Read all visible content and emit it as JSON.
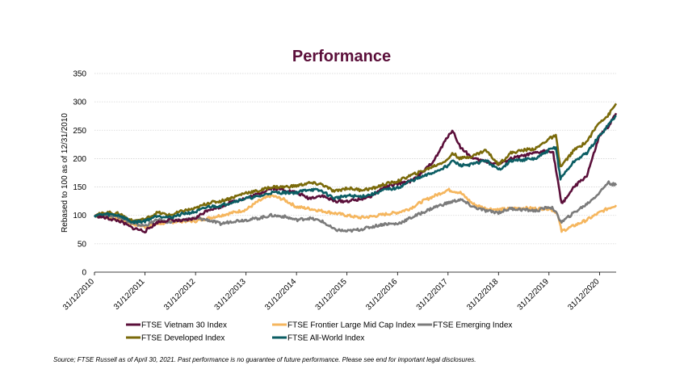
{
  "chart_data": {
    "type": "line",
    "title": "Performance",
    "ylabel": "Rebased to 100 as of 12/31/2010",
    "xlabel": "",
    "ylim": [
      0,
      350
    ],
    "yticks": [
      "0",
      "50",
      "100",
      "150",
      "200",
      "250",
      "300",
      "350"
    ],
    "xlim": [
      "2010-12-31",
      "2021-04-30"
    ],
    "xticks": [
      "31/12/2010",
      "31/12/2011",
      "31/12/2012",
      "31/12/2013",
      "31/12/2014",
      "31/12/2015",
      "31/12/2016",
      "31/12/2017",
      "31/12/2018",
      "31/12/2019",
      "31/12/2020"
    ],
    "grid": "horizontal",
    "legend_position": "bottom",
    "colors": {
      "vietnam": "#5b0f3a",
      "frontier": "#f5b65e",
      "emerging": "#7b7b7b",
      "developed": "#7a6a0a",
      "allworld": "#0b5d63",
      "title": "#5b0f3a"
    },
    "series": [
      {
        "name": "FTSE Vietnam 30 Index",
        "key": "vietnam",
        "x": [
          "2010-12-31",
          "2011-03-31",
          "2011-06-30",
          "2011-09-30",
          "2011-12-31",
          "2012-03-31",
          "2012-06-30",
          "2012-09-30",
          "2012-12-31",
          "2013-03-31",
          "2013-06-30",
          "2013-09-30",
          "2013-12-31",
          "2014-03-31",
          "2014-06-30",
          "2014-09-30",
          "2014-12-31",
          "2015-03-31",
          "2015-06-30",
          "2015-09-30",
          "2015-12-31",
          "2016-03-31",
          "2016-06-30",
          "2016-09-30",
          "2016-12-31",
          "2017-03-31",
          "2017-06-30",
          "2017-09-30",
          "2017-12-31",
          "2018-01-31",
          "2018-03-31",
          "2018-06-30",
          "2018-09-30",
          "2018-12-31",
          "2019-03-31",
          "2019-06-30",
          "2019-09-30",
          "2019-12-31",
          "2020-01-31",
          "2020-03-31",
          "2020-06-30",
          "2020-09-30",
          "2020-12-31",
          "2021-02-28",
          "2021-04-30"
        ],
        "values": [
          100,
          95,
          90,
          78,
          72,
          88,
          92,
          90,
          95,
          110,
          115,
          125,
          130,
          138,
          148,
          145,
          140,
          130,
          135,
          125,
          125,
          128,
          135,
          150,
          155,
          160,
          175,
          200,
          240,
          250,
          220,
          200,
          195,
          190,
          200,
          205,
          210,
          215,
          210,
          120,
          150,
          170,
          240,
          255,
          280
        ]
      },
      {
        "name": "FTSE Frontier Large Mid Cap Index",
        "key": "frontier",
        "x": [
          "2010-12-31",
          "2011-03-31",
          "2011-06-30",
          "2011-09-30",
          "2011-12-31",
          "2012-03-31",
          "2012-06-30",
          "2012-09-30",
          "2012-12-31",
          "2013-03-31",
          "2013-06-30",
          "2013-09-30",
          "2013-12-31",
          "2014-03-31",
          "2014-06-30",
          "2014-09-30",
          "2014-12-31",
          "2015-03-31",
          "2015-06-30",
          "2015-09-30",
          "2015-12-31",
          "2016-03-31",
          "2016-06-30",
          "2016-09-30",
          "2016-12-31",
          "2017-03-31",
          "2017-06-30",
          "2017-09-30",
          "2017-12-31",
          "2018-03-31",
          "2018-06-30",
          "2018-09-30",
          "2018-12-31",
          "2019-03-31",
          "2019-06-30",
          "2019-09-30",
          "2019-12-31",
          "2020-02-28",
          "2020-03-31",
          "2020-06-30",
          "2020-09-30",
          "2020-12-31",
          "2021-02-28",
          "2021-04-30"
        ],
        "values": [
          100,
          97,
          93,
          85,
          80,
          85,
          88,
          90,
          90,
          95,
          100,
          105,
          110,
          125,
          135,
          128,
          115,
          112,
          108,
          104,
          100,
          96,
          98,
          102,
          105,
          112,
          125,
          135,
          145,
          140,
          120,
          112,
          110,
          112,
          113,
          112,
          112,
          105,
          72,
          82,
          92,
          105,
          112,
          118
        ]
      },
      {
        "name": "FTSE Emerging Index",
        "key": "emerging",
        "x": [
          "2010-12-31",
          "2011-03-31",
          "2011-06-30",
          "2011-09-30",
          "2011-12-31",
          "2012-03-31",
          "2012-06-30",
          "2012-09-30",
          "2012-12-31",
          "2013-03-31",
          "2013-06-30",
          "2013-09-30",
          "2013-12-31",
          "2014-03-31",
          "2014-06-30",
          "2014-09-30",
          "2014-12-31",
          "2015-03-31",
          "2015-06-30",
          "2015-09-30",
          "2015-12-31",
          "2016-03-31",
          "2016-06-30",
          "2016-09-30",
          "2016-12-31",
          "2017-03-31",
          "2017-06-30",
          "2017-09-30",
          "2017-12-31",
          "2018-03-31",
          "2018-06-30",
          "2018-09-30",
          "2018-12-31",
          "2019-03-31",
          "2019-06-30",
          "2019-09-30",
          "2019-12-31",
          "2020-01-31",
          "2020-03-31",
          "2020-06-30",
          "2020-09-30",
          "2020-12-31",
          "2021-02-28",
          "2021-04-30"
        ],
        "values": [
          100,
          100,
          98,
          85,
          82,
          92,
          88,
          92,
          95,
          92,
          85,
          90,
          92,
          95,
          100,
          98,
          92,
          95,
          90,
          75,
          72,
          75,
          80,
          85,
          85,
          95,
          105,
          115,
          122,
          128,
          115,
          108,
          105,
          112,
          110,
          108,
          115,
          112,
          88,
          105,
          120,
          140,
          158,
          153
        ]
      },
      {
        "name": "FTSE Developed Index",
        "key": "developed",
        "x": [
          "2010-12-31",
          "2011-03-31",
          "2011-06-30",
          "2011-09-30",
          "2011-12-31",
          "2012-03-31",
          "2012-06-30",
          "2012-09-30",
          "2012-12-31",
          "2013-03-31",
          "2013-06-30",
          "2013-09-30",
          "2013-12-31",
          "2014-03-31",
          "2014-06-30",
          "2014-09-30",
          "2014-12-31",
          "2015-03-31",
          "2015-06-30",
          "2015-09-30",
          "2015-12-31",
          "2016-03-31",
          "2016-06-30",
          "2016-09-30",
          "2016-12-31",
          "2017-03-31",
          "2017-06-30",
          "2017-09-30",
          "2017-12-31",
          "2018-01-31",
          "2018-03-31",
          "2018-06-30",
          "2018-09-30",
          "2018-12-31",
          "2019-03-31",
          "2019-06-30",
          "2019-09-30",
          "2019-12-31",
          "2020-02-19",
          "2020-03-23",
          "2020-06-30",
          "2020-09-30",
          "2020-12-31",
          "2021-02-28",
          "2021-04-30"
        ],
        "values": [
          100,
          105,
          103,
          90,
          93,
          105,
          100,
          108,
          112,
          122,
          125,
          132,
          140,
          143,
          150,
          150,
          152,
          157,
          155,
          142,
          148,
          145,
          147,
          155,
          160,
          170,
          178,
          188,
          198,
          210,
          200,
          205,
          215,
          190,
          210,
          215,
          218,
          235,
          240,
          185,
          215,
          230,
          265,
          275,
          297
        ]
      },
      {
        "name": "FTSE All-World Index",
        "key": "allworld",
        "x": [
          "2010-12-31",
          "2011-03-31",
          "2011-06-30",
          "2011-09-30",
          "2011-12-31",
          "2012-03-31",
          "2012-06-30",
          "2012-09-30",
          "2012-12-31",
          "2013-03-31",
          "2013-06-30",
          "2013-09-30",
          "2013-12-31",
          "2014-03-31",
          "2014-06-30",
          "2014-09-30",
          "2014-12-31",
          "2015-03-31",
          "2015-06-30",
          "2015-09-30",
          "2015-12-31",
          "2016-03-31",
          "2016-06-30",
          "2016-09-30",
          "2016-12-31",
          "2017-03-31",
          "2017-06-30",
          "2017-09-30",
          "2017-12-31",
          "2018-01-31",
          "2018-03-31",
          "2018-06-30",
          "2018-09-30",
          "2018-12-31",
          "2019-03-31",
          "2019-06-30",
          "2019-09-30",
          "2019-12-31",
          "2020-02-19",
          "2020-03-23",
          "2020-06-30",
          "2020-09-30",
          "2020-12-31",
          "2021-02-28",
          "2021-04-30"
        ],
        "values": [
          100,
          102,
          100,
          88,
          90,
          100,
          96,
          103,
          106,
          115,
          117,
          124,
          130,
          133,
          140,
          140,
          140,
          146,
          143,
          130,
          135,
          133,
          137,
          145,
          148,
          160,
          168,
          177,
          188,
          196,
          188,
          190,
          197,
          180,
          196,
          198,
          200,
          215,
          220,
          165,
          195,
          210,
          240,
          258,
          276
        ]
      }
    ],
    "legend": [
      {
        "label": "FTSE Vietnam 30 Index",
        "key": "vietnam"
      },
      {
        "label": "FTSE Frontier Large Mid Cap Index",
        "key": "frontier"
      },
      {
        "label": "FTSE Emerging Index",
        "key": "emerging"
      },
      {
        "label": "FTSE Developed Index",
        "key": "developed"
      },
      {
        "label": "FTSE All-World Index",
        "key": "allworld"
      }
    ]
  },
  "source_note": "Source; FTSE Russell as of April 30, 2021. Past performance is no guarantee of future performance. Please see end for important legal disclosures."
}
